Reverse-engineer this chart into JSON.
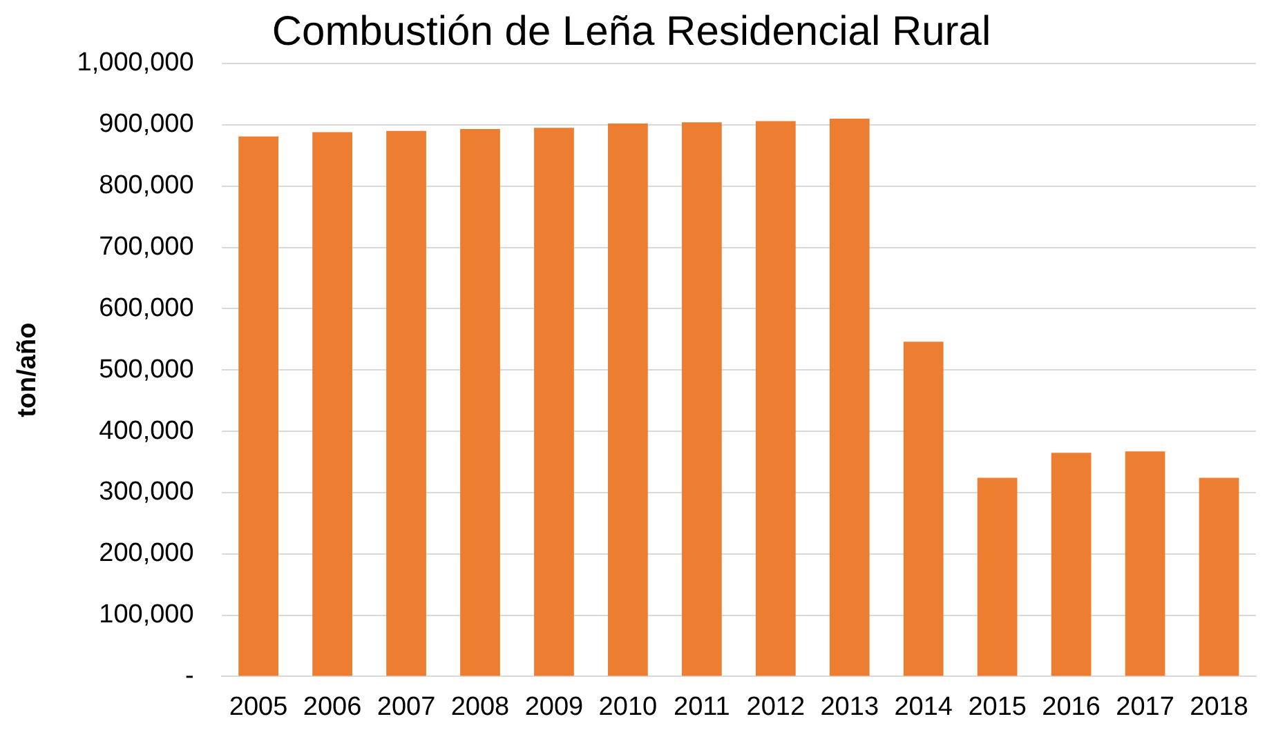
{
  "chart_data": {
    "type": "bar",
    "title": "Combustión de Leña Residencial Rural",
    "ylabel": "ton/año",
    "categories": [
      "2005",
      "2006",
      "2007",
      "2008",
      "2009",
      "2010",
      "2011",
      "2012",
      "2013",
      "2014",
      "2015",
      "2016",
      "2017",
      "2018"
    ],
    "values": [
      881000,
      888000,
      890000,
      893000,
      895000,
      902000,
      904000,
      906000,
      910000,
      546000,
      324000,
      365000,
      367000,
      324000
    ],
    "color": "#ed7d31",
    "ylim": [
      0,
      1000000
    ],
    "yticks": [
      {
        "value": 0,
        "label": "-"
      },
      {
        "value": 100000,
        "label": "100,000"
      },
      {
        "value": 200000,
        "label": "200,000"
      },
      {
        "value": 300000,
        "label": "300,000"
      },
      {
        "value": 400000,
        "label": "400,000"
      },
      {
        "value": 500000,
        "label": "500,000"
      },
      {
        "value": 600000,
        "label": "600,000"
      },
      {
        "value": 700000,
        "label": "700,000"
      },
      {
        "value": 800000,
        "label": "800,000"
      },
      {
        "value": 900000,
        "label": "900,000"
      },
      {
        "value": 1000000,
        "label": "1,000,000"
      }
    ],
    "grid": "y",
    "legend": false
  }
}
